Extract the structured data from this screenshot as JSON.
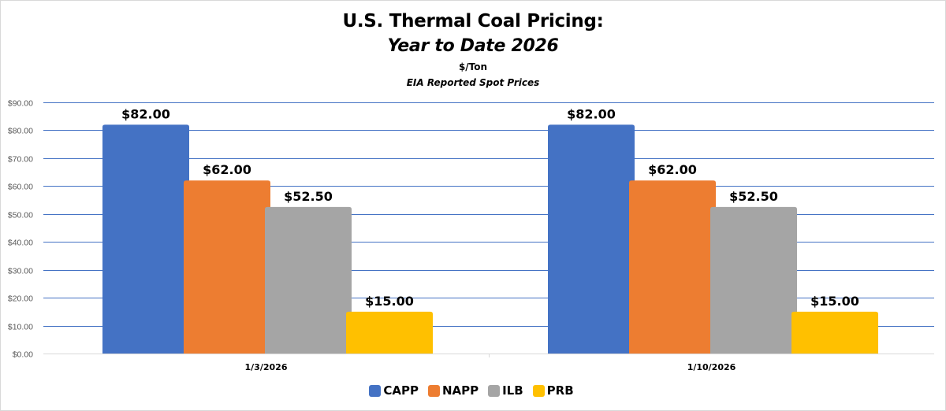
{
  "chart_data": {
    "type": "bar",
    "title": "U.S. Thermal Coal Pricing:",
    "subtitle": "Year to Date 2026",
    "unit_label": "$/Ton",
    "source_note": "EIA Reported Spot Prices",
    "xlabel": "",
    "ylabel": "",
    "ylim": [
      0,
      90
    ],
    "yticks": [
      0,
      10,
      20,
      30,
      40,
      50,
      60,
      70,
      80,
      90
    ],
    "ytick_labels": [
      "$0.00",
      "$10.00",
      "$20.00",
      "$30.00",
      "$40.00",
      "$50.00",
      "$60.00",
      "$70.00",
      "$80.00",
      "$90.00"
    ],
    "grid": true,
    "legend_position": "bottom",
    "categories": [
      "1/3/2026",
      "1/10/2026"
    ],
    "series": [
      {
        "name": "CAPP",
        "color": "#4472c4",
        "values": [
          82.0,
          82.0
        ],
        "labels": [
          "$82.00",
          "$82.00"
        ]
      },
      {
        "name": "NAPP",
        "color": "#ed7d31",
        "values": [
          62.0,
          62.0
        ],
        "labels": [
          "$62.00",
          "$62.00"
        ]
      },
      {
        "name": "ILB",
        "color": "#a5a5a5",
        "values": [
          52.5,
          52.5
        ],
        "labels": [
          "$52.50",
          "$52.50"
        ]
      },
      {
        "name": "PRB",
        "color": "#ffc000",
        "values": [
          15.0,
          15.0
        ],
        "labels": [
          "$15.00",
          "$15.00"
        ]
      }
    ],
    "gridline_color": "#4472c4",
    "axis_color": "#d9d9d9"
  }
}
